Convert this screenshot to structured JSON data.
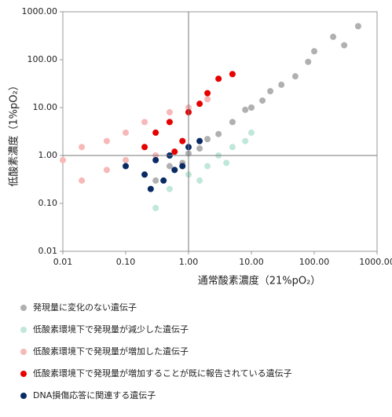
{
  "chart_data": {
    "type": "scatter",
    "xlabel": "通常酸素濃度（21%pO₂）",
    "ylabel": "低酸素濃度（1%pO₂）",
    "log_x": true,
    "log_y": true,
    "xlim": [
      0.01,
      1000
    ],
    "ylim": [
      0.01,
      1000
    ],
    "xticks": [
      0.01,
      {
        "value": 0.1,
        "label": "0.10"
      },
      {
        "value": 1,
        "label": "1.00"
      },
      {
        "value": 10,
        "label": "10.00"
      },
      {
        "value": 100,
        "label": "100.00"
      },
      {
        "value": 1000,
        "label": "1000.00"
      }
    ],
    "yticks": [
      0.01,
      {
        "value": 0.1,
        "label": "0.10"
      },
      {
        "value": 1,
        "label": "1.00"
      },
      {
        "value": 10,
        "label": "10.00"
      },
      {
        "value": 100,
        "label": "100.00"
      },
      {
        "value": 1000,
        "label": "1000.00"
      }
    ],
    "reference_lines": [
      1,
      1
    ],
    "series": [
      {
        "name": "発現量に変化のない遺伝子",
        "color": "#b0b0b0",
        "x": [
          0.3,
          0.5,
          0.8,
          1,
          1.5,
          2,
          3,
          5,
          8,
          10,
          15,
          20,
          30,
          50,
          80,
          100,
          200,
          300,
          500
        ],
        "y": [
          0.3,
          0.6,
          0.7,
          1.1,
          1.4,
          2.2,
          2.8,
          5,
          9,
          10,
          14,
          22,
          30,
          45,
          90,
          150,
          300,
          200,
          500
        ]
      },
      {
        "name": "低酸素環境下で発現量が減少した遺伝子",
        "color": "#bfe8d8",
        "x": [
          0.5,
          1,
          2,
          3,
          5,
          8,
          10,
          0.3,
          1.5,
          4
        ],
        "y": [
          0.2,
          0.4,
          0.6,
          1,
          1.5,
          2,
          3,
          0.08,
          0.3,
          0.7
        ]
      },
      {
        "name": "低酸素環境下で発現量が増加した遺伝子",
        "color": "#f7b8b8",
        "x": [
          0.01,
          0.02,
          0.05,
          0.1,
          0.2,
          0.3,
          0.05,
          0.5,
          1,
          0.02,
          0.1,
          2
        ],
        "y": [
          0.8,
          1.5,
          2,
          3,
          5,
          1,
          0.5,
          8,
          10,
          0.3,
          0.8,
          15
        ]
      },
      {
        "name": "低酸素環境下で発現量が増加することが既に報告されている遺伝子",
        "color": "#e60000",
        "x": [
          0.3,
          0.5,
          1,
          0.8,
          2,
          3,
          0.2,
          1.5,
          0.6,
          5
        ],
        "y": [
          3,
          5,
          8,
          2,
          20,
          40,
          1.5,
          12,
          1.2,
          50
        ]
      },
      {
        "name": "DNA損傷応答に関連する遺伝子",
        "color": "#0a2a66",
        "x": [
          0.1,
          0.2,
          0.3,
          0.5,
          0.8,
          1,
          0.4,
          0.6,
          1.5,
          0.25
        ],
        "y": [
          0.6,
          0.4,
          0.8,
          1,
          0.6,
          1.5,
          0.3,
          0.5,
          2,
          0.2
        ]
      }
    ]
  }
}
